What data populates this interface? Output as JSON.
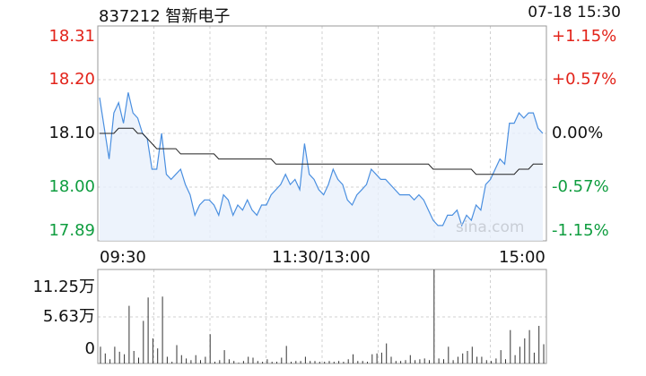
{
  "header": {
    "title": "837212 智新电子",
    "datetime": "07-18 15:30"
  },
  "watermark": "sina.com",
  "colors": {
    "up": "#e2231a",
    "down": "#0f9d3f",
    "neutral": "#111111",
    "price_line": "#4a8fe0",
    "avg_line": "#222222",
    "area_fill": "#e8f0fb",
    "grid": "#d0d0d0",
    "volume": "#333333"
  },
  "chart_data": [
    {
      "type": "line",
      "title": "",
      "x_labels": [
        "09:30",
        "11:30/13:00",
        "15:00"
      ],
      "y_left_ticks": [
        "18.31",
        "18.20",
        "18.10",
        "18.00",
        "17.89"
      ],
      "y_right_ticks": [
        "+1.15%",
        "+0.57%",
        "0.00%",
        "-0.57%",
        "-1.15%"
      ],
      "ylim": [
        17.89,
        18.31
      ],
      "prev_close": 18.1,
      "grid": true,
      "series": [
        {
          "values": [
            18.17,
            18.11,
            18.05,
            18.14,
            18.16,
            18.12,
            18.18,
            18.14,
            18.13,
            18.1,
            18.09,
            18.03,
            18.03,
            18.1,
            18.02,
            18.01,
            18.02,
            18.03,
            18.0,
            17.98,
            17.94,
            17.96,
            17.97,
            17.97,
            17.96,
            17.94,
            17.98,
            17.97,
            17.94,
            17.96,
            17.95,
            17.97,
            17.95,
            17.94,
            17.96,
            17.96,
            17.98,
            17.99,
            18.0,
            18.02,
            18.0,
            18.01,
            17.99,
            18.08,
            18.02,
            18.01,
            17.99,
            17.98,
            18.0,
            18.03,
            18.01,
            18.0,
            17.97,
            17.96,
            17.98,
            17.99,
            18.0,
            18.03,
            18.02,
            18.01,
            18.01,
            18.0,
            17.99,
            17.98,
            17.98,
            17.98,
            17.97,
            17.98,
            17.97,
            17.95,
            17.93,
            17.92,
            17.92,
            17.94,
            17.94,
            17.95,
            17.92,
            17.94,
            17.93,
            17.96,
            17.95,
            18.0,
            18.01,
            18.03,
            18.05,
            18.04,
            18.12,
            18.12,
            18.14,
            18.13,
            18.14,
            18.14,
            18.11,
            18.1
          ],
          "avg": [
            18.1,
            18.1,
            18.1,
            18.1,
            18.11,
            18.11,
            18.11,
            18.11,
            18.1,
            18.1,
            18.09,
            18.08,
            18.07,
            18.07,
            18.07,
            18.07,
            18.07,
            18.06,
            18.06,
            18.06,
            18.06,
            18.06,
            18.06,
            18.06,
            18.06,
            18.05,
            18.05,
            18.05,
            18.05,
            18.05,
            18.05,
            18.05,
            18.05,
            18.05,
            18.05,
            18.05,
            18.05,
            18.04,
            18.04,
            18.04,
            18.04,
            18.04,
            18.04,
            18.04,
            18.04,
            18.04,
            18.04,
            18.04,
            18.04,
            18.04,
            18.04,
            18.04,
            18.04,
            18.04,
            18.04,
            18.04,
            18.04,
            18.04,
            18.04,
            18.04,
            18.04,
            18.04,
            18.04,
            18.04,
            18.04,
            18.04,
            18.04,
            18.04,
            18.04,
            18.04,
            18.03,
            18.03,
            18.03,
            18.03,
            18.03,
            18.03,
            18.03,
            18.03,
            18.03,
            18.02,
            18.02,
            18.02,
            18.02,
            18.02,
            18.02,
            18.02,
            18.02,
            18.02,
            18.03,
            18.03,
            18.03,
            18.04,
            18.04,
            18.04
          ]
        }
      ]
    },
    {
      "type": "bar",
      "title": "",
      "y_ticks": [
        "11.25万",
        "5.63万",
        "0"
      ],
      "ylim": [
        0,
        11.25
      ],
      "unit": "万",
      "values": [
        2.0,
        1.2,
        0.5,
        2.0,
        1.4,
        1.1,
        6.9,
        1.5,
        0.7,
        5.1,
        7.9,
        3.0,
        1.8,
        8.0,
        0.8,
        0.2,
        2.2,
        1.0,
        0.6,
        0.4,
        1.0,
        0.4,
        0.8,
        3.5,
        0.2,
        0.4,
        1.6,
        0.5,
        0.3,
        0.1,
        0.3,
        0.8,
        0.7,
        0.3,
        0.2,
        0.5,
        0.2,
        0.2,
        0.7,
        2.1,
        0.2,
        0.3,
        0.3,
        0.8,
        0.3,
        0.3,
        0.2,
        0.2,
        0.3,
        0.2,
        0.3,
        0.2,
        0.5,
        1.1,
        0.3,
        0.3,
        0.2,
        1.1,
        1.2,
        1.3,
        2.4,
        0.8,
        0.3,
        0.3,
        0.4,
        1.0,
        0.4,
        0.5,
        0.6,
        0.4,
        11.25,
        0.6,
        0.5,
        2.0,
        0.4,
        0.8,
        1.2,
        1.5,
        2.0,
        0.8,
        0.8,
        0.4,
        0.3,
        0.6,
        1.6,
        0.5,
        4.0,
        1.0,
        2.0,
        3.0,
        4.0,
        1.3,
        4.5,
        2.3
      ]
    }
  ]
}
